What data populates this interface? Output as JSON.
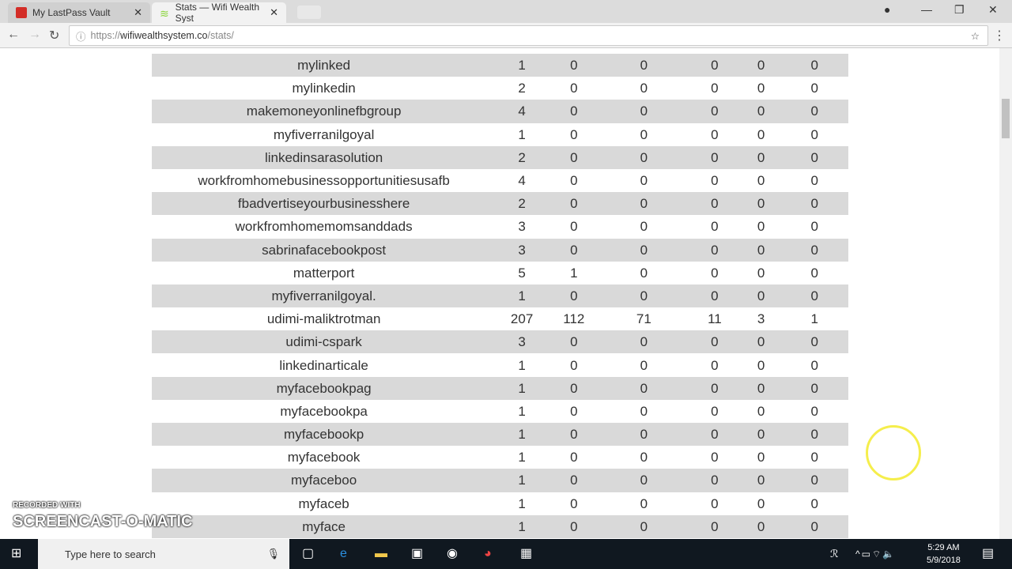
{
  "browser": {
    "tabs": [
      {
        "title": "My LastPass Vault",
        "favicon_color": "#d32d27"
      },
      {
        "title": "Stats — Wifi Wealth Syst",
        "favicon_color": "#8ad43a"
      }
    ],
    "url_scheme": "https://",
    "url_host": "wifiwealthsystem.co",
    "url_path": "/stats/"
  },
  "stats": {
    "rows": [
      [
        "mylinked",
        "1",
        "0",
        "0",
        "0",
        "0",
        "0"
      ],
      [
        "mylinkedin",
        "2",
        "0",
        "0",
        "0",
        "0",
        "0"
      ],
      [
        "makemoneyonlinefbgroup",
        "4",
        "0",
        "0",
        "0",
        "0",
        "0"
      ],
      [
        "myfiverranilgoyal",
        "1",
        "0",
        "0",
        "0",
        "0",
        "0"
      ],
      [
        "linkedinsarasolution",
        "2",
        "0",
        "0",
        "0",
        "0",
        "0"
      ],
      [
        "workfromhomebusinessopportunitiesusafb",
        "4",
        "0",
        "0",
        "0",
        "0",
        "0"
      ],
      [
        "fbadvertiseyourbusinesshere",
        "2",
        "0",
        "0",
        "0",
        "0",
        "0"
      ],
      [
        "workfromhomemomsanddads",
        "3",
        "0",
        "0",
        "0",
        "0",
        "0"
      ],
      [
        "sabrinafacebookpost",
        "3",
        "0",
        "0",
        "0",
        "0",
        "0"
      ],
      [
        "matterport",
        "5",
        "1",
        "0",
        "0",
        "0",
        "0"
      ],
      [
        "myfiverranilgoyal.",
        "1",
        "0",
        "0",
        "0",
        "0",
        "0"
      ],
      [
        "udimi-maliktrotman",
        "207",
        "112",
        "71",
        "11",
        "3",
        "1"
      ],
      [
        "udimi-cspark",
        "3",
        "0",
        "0",
        "0",
        "0",
        "0"
      ],
      [
        "linkedinarticale",
        "1",
        "0",
        "0",
        "0",
        "0",
        "0"
      ],
      [
        "myfacebookpag",
        "1",
        "0",
        "0",
        "0",
        "0",
        "0"
      ],
      [
        "myfacebookpa",
        "1",
        "0",
        "0",
        "0",
        "0",
        "0"
      ],
      [
        "myfacebookp",
        "1",
        "0",
        "0",
        "0",
        "0",
        "0"
      ],
      [
        "myfacebook",
        "1",
        "0",
        "0",
        "0",
        "0",
        "0"
      ],
      [
        "myfaceboo",
        "1",
        "0",
        "0",
        "0",
        "0",
        "0"
      ],
      [
        "myfaceb",
        "1",
        "0",
        "0",
        "0",
        "0",
        "0"
      ],
      [
        "myface",
        "1",
        "0",
        "0",
        "0",
        "0",
        "0"
      ]
    ]
  },
  "taskbar": {
    "search_placeholder": "Type here to search",
    "time": "5:29 AM",
    "date": "5/9/2018"
  },
  "watermark": {
    "line1": "RECORDED WITH",
    "line2": "SCREENCAST-O-MATIC"
  }
}
